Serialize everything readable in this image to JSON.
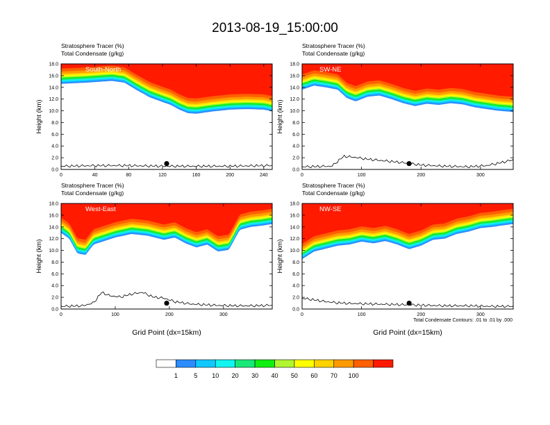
{
  "figure": {
    "title": "2013-08-19_15:00:00",
    "contour_note": "Total Condensate Contours: .01 to .01 by .000"
  },
  "colorbar": {
    "labels": [
      "1",
      "5",
      "10",
      "20",
      "30",
      "40",
      "50",
      "60",
      "70",
      "100"
    ],
    "colors": [
      "#ffffff",
      "#2b8cff",
      "#10c8ff",
      "#10f5f0",
      "#18e878",
      "#10f010",
      "#b0f530",
      "#ffff00",
      "#ffd200",
      "#ff9a00",
      "#ff6000",
      "#ff1a00"
    ]
  },
  "chart_data": [
    {
      "type": "filled-contour",
      "panel": "South-North",
      "label1": "Stratosphere Tracer   (%)",
      "label2": "Total Condensate   (g/kg)",
      "ylabel": "Height (km)",
      "xlabel": "",
      "ylim": [
        0,
        18
      ],
      "yticks": [
        "0.0",
        "2.0",
        "4.0",
        "6.0",
        "8.0",
        "10.0",
        "12.0",
        "14.0",
        "16.0",
        "18.0"
      ],
      "xlim": [
        0,
        250
      ],
      "xticks": [
        0,
        40,
        80,
        120,
        160,
        200,
        240
      ],
      "marker_x": 125,
      "tracer_base_km": {
        "x": [
          0,
          30,
          60,
          75,
          90,
          105,
          120,
          130,
          140,
          150,
          160,
          180,
          200,
          220,
          240,
          250
        ],
        "y": [
          14.6,
          14.8,
          15.1,
          14.8,
          13.5,
          12.3,
          11.5,
          11.0,
          10.2,
          9.6,
          9.5,
          9.9,
          10.2,
          10.3,
          10.2,
          9.9
        ]
      },
      "terrain_km": {
        "x": [
          0,
          40,
          80,
          120,
          160,
          200,
          240,
          250
        ],
        "y": [
          0.5,
          0.6,
          0.6,
          0.5,
          0.5,
          0.5,
          0.6,
          0.6
        ]
      }
    },
    {
      "type": "filled-contour",
      "panel": "SW-NE",
      "label1": "Stratosphere Tracer   (%)",
      "label2": "Total Condensate   (g/kg)",
      "ylabel": "Height (km)",
      "xlabel": "",
      "ylim": [
        0,
        18
      ],
      "yticks": [
        "0.0",
        "2.0",
        "4.0",
        "6.0",
        "8.0",
        "10.0",
        "12.0",
        "14.0",
        "16.0",
        "18.0"
      ],
      "xlim": [
        0,
        355
      ],
      "xticks": [
        0,
        100,
        200,
        300
      ],
      "marker_x": 180,
      "tracer_base_km": {
        "x": [
          0,
          20,
          40,
          60,
          75,
          90,
          110,
          130,
          150,
          170,
          190,
          210,
          230,
          250,
          270,
          290,
          310,
          330,
          355
        ],
        "y": [
          13.6,
          14.3,
          14.0,
          13.6,
          12.2,
          11.6,
          12.4,
          12.6,
          12.0,
          11.3,
          10.8,
          11.2,
          11.0,
          11.3,
          11.1,
          10.6,
          10.3,
          10.0,
          9.8
        ]
      },
      "terrain_km": {
        "x": [
          0,
          50,
          70,
          90,
          110,
          140,
          170,
          200,
          240,
          280,
          310,
          330,
          355
        ],
        "y": [
          0.4,
          0.5,
          2.2,
          2.0,
          1.7,
          1.4,
          1.1,
          0.7,
          0.5,
          0.4,
          0.6,
          1.0,
          1.6
        ]
      }
    },
    {
      "type": "filled-contour",
      "panel": "West-East",
      "label1": "Stratosphere Tracer   (%)",
      "label2": "Total Condensate   (g/kg)",
      "ylabel": "Height (km)",
      "xlabel": "Grid Point (dx=15km)",
      "ylim": [
        0,
        18
      ],
      "yticks": [
        "0.0",
        "2.0",
        "4.0",
        "6.0",
        "8.0",
        "10.0",
        "12.0",
        "14.0",
        "16.0",
        "18.0"
      ],
      "xlim": [
        0,
        390
      ],
      "xticks": [
        0,
        100,
        200,
        300
      ],
      "marker_x": 195,
      "tracer_base_km": {
        "x": [
          0,
          15,
          30,
          45,
          60,
          80,
          100,
          130,
          160,
          190,
          210,
          230,
          250,
          270,
          290,
          310,
          330,
          350,
          370,
          390
        ],
        "y": [
          13.0,
          12.0,
          9.5,
          9.2,
          11.0,
          11.6,
          12.2,
          12.8,
          12.5,
          11.8,
          12.2,
          11.2,
          10.5,
          11.0,
          9.8,
          10.1,
          13.5,
          14.0,
          14.2,
          14.5
        ]
      },
      "terrain_km": {
        "x": [
          0,
          40,
          60,
          75,
          90,
          110,
          130,
          150,
          170,
          190,
          210,
          240,
          280,
          320,
          360,
          390
        ],
        "y": [
          0.4,
          0.5,
          1.0,
          2.8,
          2.2,
          2.0,
          2.5,
          2.8,
          2.0,
          1.8,
          1.2,
          0.8,
          0.6,
          0.5,
          0.5,
          0.6
        ]
      }
    },
    {
      "type": "filled-contour",
      "panel": "NW-SE",
      "label1": "Stratosphere Tracer   (%)",
      "label2": "Total Condensate   (g/kg)",
      "ylabel": "Height (km)",
      "xlabel": "Grid Point (dx=15km)",
      "ylim": [
        0,
        18
      ],
      "yticks": [
        "0.0",
        "2.0",
        "4.0",
        "6.0",
        "8.0",
        "10.0",
        "12.0",
        "14.0",
        "16.0",
        "18.0"
      ],
      "xlim": [
        0,
        355
      ],
      "xticks": [
        0,
        100,
        200,
        300
      ],
      "marker_x": 180,
      "tracer_base_km": {
        "x": [
          0,
          20,
          40,
          60,
          80,
          100,
          120,
          140,
          160,
          180,
          200,
          220,
          240,
          260,
          280,
          300,
          320,
          340,
          355
        ],
        "y": [
          8.5,
          9.8,
          10.3,
          10.8,
          11.0,
          11.5,
          11.2,
          11.6,
          11.0,
          10.2,
          10.8,
          11.8,
          12.0,
          12.8,
          13.2,
          13.8,
          14.0,
          14.3,
          14.5
        ]
      },
      "terrain_km": {
        "x": [
          0,
          20,
          40,
          60,
          80,
          120,
          160,
          200,
          240,
          280,
          320,
          355
        ],
        "y": [
          1.8,
          1.5,
          1.2,
          1.0,
          0.9,
          0.8,
          0.7,
          0.6,
          0.5,
          0.5,
          0.4,
          0.4
        ]
      }
    }
  ]
}
